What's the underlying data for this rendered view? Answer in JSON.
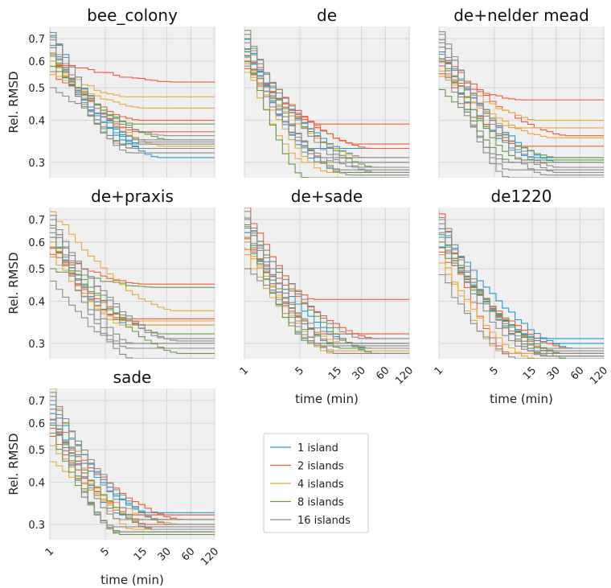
{
  "colors": {
    "1 island": "#1f9bd7",
    "2 islands": "#f25a38",
    "4 islands": "#e8a93a",
    "8 islands": "#6a9a48",
    "16 islands": "#8c8c8c",
    "panel_bg": "#f0f0f0",
    "grid": "#d4d4d4"
  },
  "chart_data": {
    "type": "line",
    "xscale": "log",
    "yscale": "log",
    "xlabel": "time (min)",
    "ylabel": "Rel. RMSD",
    "xlim": [
      1,
      120
    ],
    "ylim": [
      0.27,
      0.76
    ],
    "xticks": [
      1,
      5,
      15,
      30,
      60,
      120
    ],
    "yticks": [
      0.3,
      0.4,
      0.5,
      0.6,
      0.7
    ],
    "legend": {
      "placement": "lower-center",
      "entries": [
        "1 island",
        "2 islands",
        "4 islands",
        "8 islands",
        "16 islands"
      ]
    },
    "panels": [
      {
        "title": "bee_colony",
        "series": [
          {
            "group": "1 island",
            "start": 0.72,
            "end": 0.31
          },
          {
            "group": "1 island",
            "start": 0.66,
            "end": 0.33
          },
          {
            "group": "1 island",
            "start": 0.62,
            "end": 0.34
          },
          {
            "group": "2 islands",
            "start": 0.6,
            "end": 0.52
          },
          {
            "group": "2 islands",
            "start": 0.56,
            "end": 0.4
          },
          {
            "group": "2 islands",
            "start": 0.63,
            "end": 0.37
          },
          {
            "group": "4 islands",
            "start": 0.58,
            "end": 0.47
          },
          {
            "group": "4 islands",
            "start": 0.55,
            "end": 0.435
          },
          {
            "group": "4 islands",
            "start": 0.6,
            "end": 0.335
          },
          {
            "group": "8 islands",
            "start": 0.62,
            "end": 0.39
          },
          {
            "group": "8 islands",
            "start": 0.58,
            "end": 0.35
          },
          {
            "group": "8 islands",
            "start": 0.64,
            "end": 0.33
          },
          {
            "group": "16 islands",
            "start": 0.74,
            "end": 0.34
          },
          {
            "group": "16 islands",
            "start": 0.7,
            "end": 0.33
          },
          {
            "group": "16 islands",
            "start": 0.66,
            "end": 0.35
          },
          {
            "group": "16 islands",
            "start": 0.5,
            "end": 0.36
          },
          {
            "group": "16 islands",
            "start": 0.68,
            "end": 0.32
          },
          {
            "group": "16 islands",
            "start": 0.72,
            "end": 0.345
          }
        ]
      },
      {
        "title": "de",
        "series": [
          {
            "group": "1 island",
            "start": 0.66,
            "end": 0.33
          },
          {
            "group": "1 island",
            "start": 0.62,
            "end": 0.31
          },
          {
            "group": "1 island",
            "start": 0.7,
            "end": 0.3
          },
          {
            "group": "2 islands",
            "start": 0.6,
            "end": 0.39
          },
          {
            "group": "2 islands",
            "start": 0.57,
            "end": 0.33
          },
          {
            "group": "2 islands",
            "start": 0.64,
            "end": 0.34
          },
          {
            "group": "4 islands",
            "start": 0.56,
            "end": 0.31
          },
          {
            "group": "4 islands",
            "start": 0.59,
            "end": 0.3
          },
          {
            "group": "4 islands",
            "start": 0.62,
            "end": 0.28
          },
          {
            "group": "8 islands",
            "start": 0.74,
            "end": 0.28
          },
          {
            "group": "8 islands",
            "start": 0.65,
            "end": 0.27
          },
          {
            "group": "8 islands",
            "start": 0.6,
            "end": 0.29
          },
          {
            "group": "16 islands",
            "start": 0.68,
            "end": 0.28
          },
          {
            "group": "16 islands",
            "start": 0.72,
            "end": 0.29
          },
          {
            "group": "16 islands",
            "start": 0.63,
            "end": 0.3
          },
          {
            "group": "16 islands",
            "start": 0.58,
            "end": 0.275
          },
          {
            "group": "16 islands",
            "start": 0.7,
            "end": 0.31
          },
          {
            "group": "16 islands",
            "start": 0.66,
            "end": 0.285
          }
        ]
      },
      {
        "title": "de+nelder mead",
        "series": [
          {
            "group": "1 island",
            "start": 0.64,
            "end": 0.3
          },
          {
            "group": "1 island",
            "start": 0.6,
            "end": 0.31
          },
          {
            "group": "2 islands",
            "start": 0.55,
            "end": 0.46
          },
          {
            "group": "2 islands",
            "start": 0.58,
            "end": 0.335
          },
          {
            "group": "2 islands",
            "start": 0.62,
            "end": 0.36
          },
          {
            "group": "4 islands",
            "start": 0.57,
            "end": 0.4
          },
          {
            "group": "4 islands",
            "start": 0.6,
            "end": 0.38
          },
          {
            "group": "4 islands",
            "start": 0.54,
            "end": 0.355
          },
          {
            "group": "8 islands",
            "start": 0.5,
            "end": 0.31
          },
          {
            "group": "8 islands",
            "start": 0.62,
            "end": 0.3
          },
          {
            "group": "8 islands",
            "start": 0.66,
            "end": 0.305
          },
          {
            "group": "16 islands",
            "start": 0.72,
            "end": 0.27
          },
          {
            "group": "16 islands",
            "start": 0.68,
            "end": 0.285
          },
          {
            "group": "16 islands",
            "start": 0.64,
            "end": 0.29
          },
          {
            "group": "16 islands",
            "start": 0.7,
            "end": 0.28
          },
          {
            "group": "16 islands",
            "start": 0.6,
            "end": 0.3
          },
          {
            "group": "16 islands",
            "start": 0.74,
            "end": 0.275
          }
        ]
      },
      {
        "title": "de+praxis",
        "series": [
          {
            "group": "1 island",
            "start": 0.62,
            "end": 0.34
          },
          {
            "group": "2 islands",
            "start": 0.56,
            "end": 0.45
          },
          {
            "group": "2 islands",
            "start": 0.6,
            "end": 0.355
          },
          {
            "group": "2 islands",
            "start": 0.58,
            "end": 0.34
          },
          {
            "group": "4 islands",
            "start": 0.74,
            "end": 0.375
          },
          {
            "group": "4 islands",
            "start": 0.6,
            "end": 0.34
          },
          {
            "group": "4 islands",
            "start": 0.55,
            "end": 0.35
          },
          {
            "group": "8 islands",
            "start": 0.5,
            "end": 0.44
          },
          {
            "group": "8 islands",
            "start": 0.58,
            "end": 0.32
          },
          {
            "group": "8 islands",
            "start": 0.62,
            "end": 0.28
          },
          {
            "group": "16 islands",
            "start": 0.72,
            "end": 0.3
          },
          {
            "group": "16 islands",
            "start": 0.68,
            "end": 0.31
          },
          {
            "group": "16 islands",
            "start": 0.46,
            "end": 0.29
          },
          {
            "group": "16 islands",
            "start": 0.66,
            "end": 0.305
          },
          {
            "group": "16 islands",
            "start": 0.64,
            "end": 0.27
          },
          {
            "group": "16 islands",
            "start": 0.7,
            "end": 0.3
          }
        ]
      },
      {
        "title": "de+sade",
        "series": [
          {
            "group": "1 island",
            "start": 0.64,
            "end": 0.3
          },
          {
            "group": "1 island",
            "start": 0.6,
            "end": 0.29
          },
          {
            "group": "2 islands",
            "start": 0.76,
            "end": 0.405
          },
          {
            "group": "2 islands",
            "start": 0.62,
            "end": 0.32
          },
          {
            "group": "2 islands",
            "start": 0.58,
            "end": 0.31
          },
          {
            "group": "4 islands",
            "start": 0.55,
            "end": 0.28
          },
          {
            "group": "4 islands",
            "start": 0.6,
            "end": 0.285
          },
          {
            "group": "4 islands",
            "start": 0.57,
            "end": 0.3
          },
          {
            "group": "8 islands",
            "start": 0.66,
            "end": 0.3
          },
          {
            "group": "8 islands",
            "start": 0.62,
            "end": 0.29
          },
          {
            "group": "8 islands",
            "start": 0.68,
            "end": 0.28
          },
          {
            "group": "16 islands",
            "start": 0.72,
            "end": 0.3
          },
          {
            "group": "16 islands",
            "start": 0.68,
            "end": 0.31
          },
          {
            "group": "16 islands",
            "start": 0.5,
            "end": 0.29
          },
          {
            "group": "16 islands",
            "start": 0.7,
            "end": 0.3
          },
          {
            "group": "16 islands",
            "start": 0.64,
            "end": 0.28
          },
          {
            "group": "16 islands",
            "start": 0.74,
            "end": 0.295
          }
        ]
      },
      {
        "title": "de1220",
        "series": [
          {
            "group": "1 island",
            "start": 0.62,
            "end": 0.31
          },
          {
            "group": "1 island",
            "start": 0.58,
            "end": 0.3
          },
          {
            "group": "1 island",
            "start": 0.66,
            "end": 0.29
          },
          {
            "group": "2 islands",
            "start": 0.74,
            "end": 0.28
          },
          {
            "group": "2 islands",
            "start": 0.56,
            "end": 0.29
          },
          {
            "group": "2 islands",
            "start": 0.6,
            "end": 0.28
          },
          {
            "group": "4 islands",
            "start": 0.55,
            "end": 0.28
          },
          {
            "group": "4 islands",
            "start": 0.52,
            "end": 0.27
          },
          {
            "group": "8 islands",
            "start": 0.6,
            "end": 0.28
          },
          {
            "group": "8 islands",
            "start": 0.64,
            "end": 0.275
          },
          {
            "group": "8 islands",
            "start": 0.58,
            "end": 0.27
          },
          {
            "group": "16 islands",
            "start": 0.72,
            "end": 0.28
          },
          {
            "group": "16 islands",
            "start": 0.68,
            "end": 0.29
          },
          {
            "group": "16 islands",
            "start": 0.48,
            "end": 0.27
          },
          {
            "group": "16 islands",
            "start": 0.7,
            "end": 0.275
          },
          {
            "group": "16 islands",
            "start": 0.64,
            "end": 0.285
          }
        ]
      },
      {
        "title": "sade",
        "series": [
          {
            "group": "1 island",
            "start": 0.64,
            "end": 0.32
          },
          {
            "group": "1 island",
            "start": 0.6,
            "end": 0.31
          },
          {
            "group": "1 island",
            "start": 0.68,
            "end": 0.325
          },
          {
            "group": "2 islands",
            "start": 0.58,
            "end": 0.31
          },
          {
            "group": "2 islands",
            "start": 0.55,
            "end": 0.3
          },
          {
            "group": "2 islands",
            "start": 0.62,
            "end": 0.32
          },
          {
            "group": "4 islands",
            "start": 0.46,
            "end": 0.3
          },
          {
            "group": "4 islands",
            "start": 0.76,
            "end": 0.29
          },
          {
            "group": "4 islands",
            "start": 0.52,
            "end": 0.31
          },
          {
            "group": "8 islands",
            "start": 0.6,
            "end": 0.29
          },
          {
            "group": "8 islands",
            "start": 0.56,
            "end": 0.285
          },
          {
            "group": "8 islands",
            "start": 0.66,
            "end": 0.28
          },
          {
            "group": "16 islands",
            "start": 0.74,
            "end": 0.29
          },
          {
            "group": "16 islands",
            "start": 0.7,
            "end": 0.3
          },
          {
            "group": "16 islands",
            "start": 0.66,
            "end": 0.285
          },
          {
            "group": "16 islands",
            "start": 0.72,
            "end": 0.31
          },
          {
            "group": "16 islands",
            "start": 0.62,
            "end": 0.295
          }
        ]
      }
    ]
  }
}
